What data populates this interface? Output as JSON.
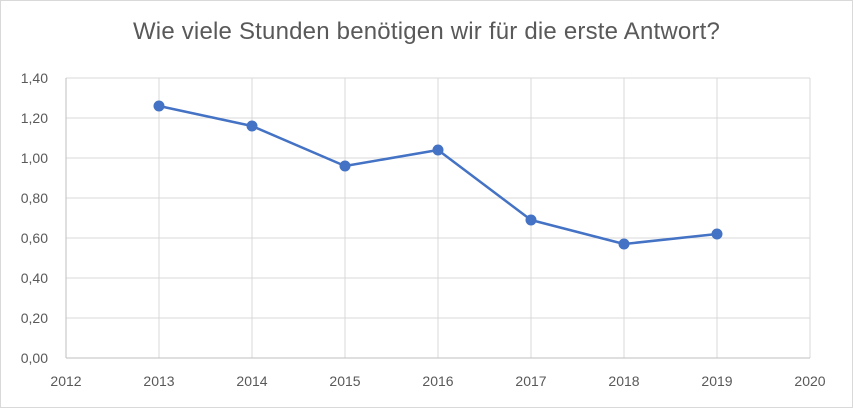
{
  "chart_data": {
    "type": "scatter",
    "title": "Wie viele Stunden benötigen wir für die erste Antwort?",
    "xlabel": "",
    "ylabel": "",
    "xlim": [
      2012,
      2020
    ],
    "ylim": [
      0,
      1.4
    ],
    "x_ticks": [
      "2012",
      "2013",
      "2014",
      "2015",
      "2016",
      "2017",
      "2018",
      "2019",
      "2020"
    ],
    "y_ticks": [
      "0,00",
      "0,20",
      "0,40",
      "0,60",
      "0,80",
      "1,00",
      "1,20",
      "1,40"
    ],
    "grid": true,
    "legend": "none",
    "color": "#4472c4",
    "series": [
      {
        "x": [
          2013,
          2014,
          2015,
          2016,
          2017,
          2018,
          2019
        ],
        "y": [
          1.26,
          1.16,
          0.96,
          1.04,
          0.69,
          0.57,
          0.62
        ]
      }
    ]
  }
}
